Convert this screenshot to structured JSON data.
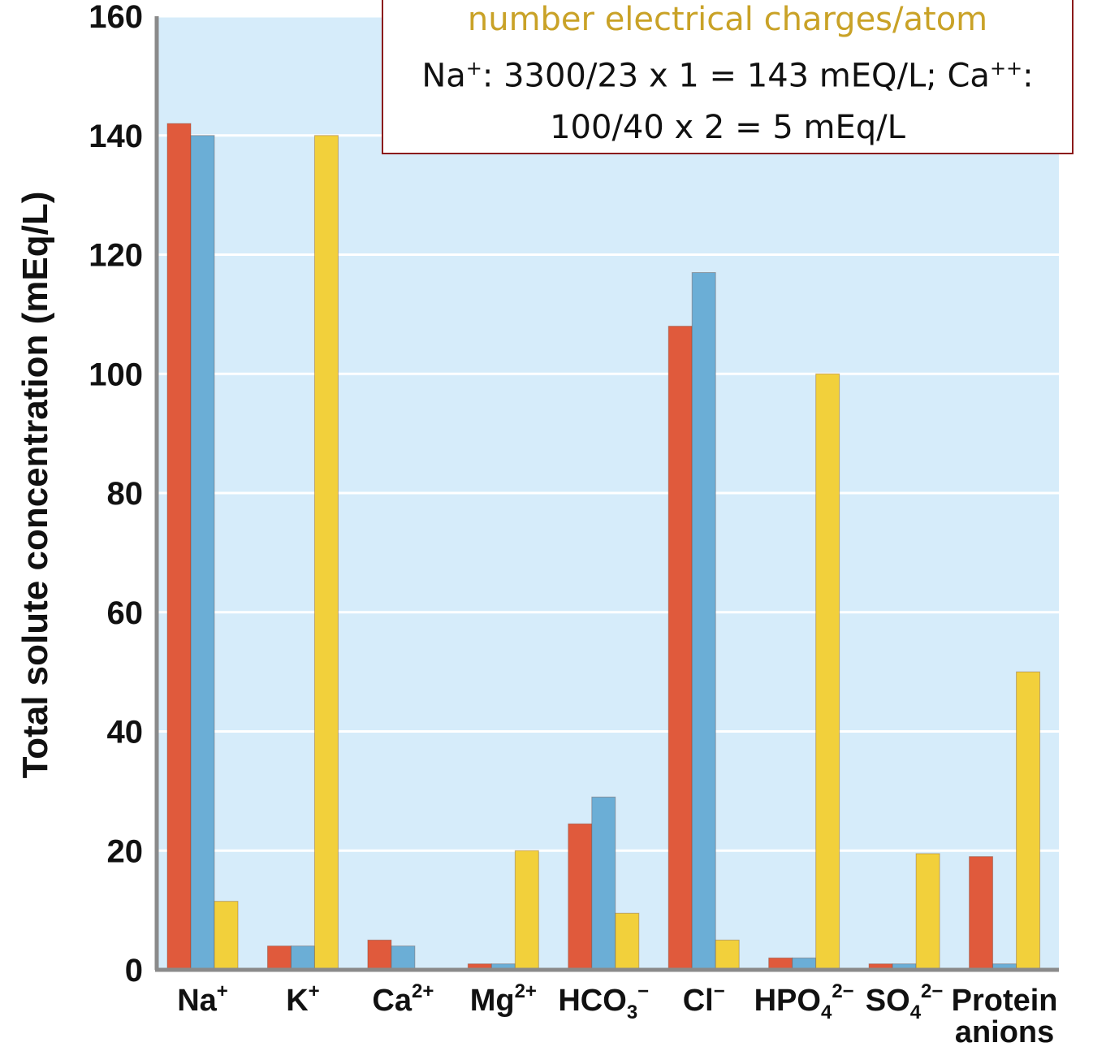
{
  "chart_data": {
    "type": "bar",
    "title": "",
    "xlabel": "",
    "ylabel": "Total solute concentration (mEq/L)",
    "ylim": [
      0,
      160
    ],
    "yticks": [
      "0",
      "20",
      "40",
      "60",
      "80",
      "100",
      "120",
      "140",
      "160"
    ],
    "grid": true,
    "categories": [
      {
        "base": "Na",
        "sub": "",
        "sup": "+",
        "line2": ""
      },
      {
        "base": "K",
        "sub": "",
        "sup": "+",
        "line2": ""
      },
      {
        "base": "Ca",
        "sub": "",
        "sup": "2+",
        "line2": ""
      },
      {
        "base": "Mg",
        "sub": "",
        "sup": "2+",
        "line2": ""
      },
      {
        "base": "HCO",
        "sub": "3",
        "sup": "−",
        "line2": ""
      },
      {
        "base": "Cl",
        "sub": "",
        "sup": "−",
        "line2": ""
      },
      {
        "base": "HPO",
        "sub": "4",
        "sup": "2−",
        "line2": ""
      },
      {
        "base": "SO",
        "sub": "4",
        "sup": "2−",
        "line2": ""
      },
      {
        "base": "Protein",
        "sub": "",
        "sup": "",
        "line2": "anions"
      }
    ],
    "series": [
      {
        "color": "#e05a3c",
        "values": [
          142,
          4,
          5,
          1,
          24.5,
          108,
          2,
          1,
          19
        ]
      },
      {
        "color": "#6baed6",
        "values": [
          140,
          4,
          4,
          1,
          29,
          117,
          2,
          1,
          1
        ]
      },
      {
        "color": "#f2d03b",
        "values": [
          11.5,
          140,
          0,
          20,
          9.5,
          5,
          100,
          19.5,
          50
        ]
      }
    ],
    "colors": {
      "plot_bg": "#d6ecfa",
      "grid": "#ffffff",
      "axis": "#8a8a8a"
    }
  },
  "annotation": {
    "line1": "number electrical charges/atom",
    "line2_pre": "Na",
    "line2_sup1": "+",
    "line2_mid": ":  3300/23 x 1 = 143 mEQ/L;  Ca",
    "line2_sup2": "++",
    "line2_end": ":",
    "line3": "100/40 x 2 = 5 mEq/L"
  }
}
